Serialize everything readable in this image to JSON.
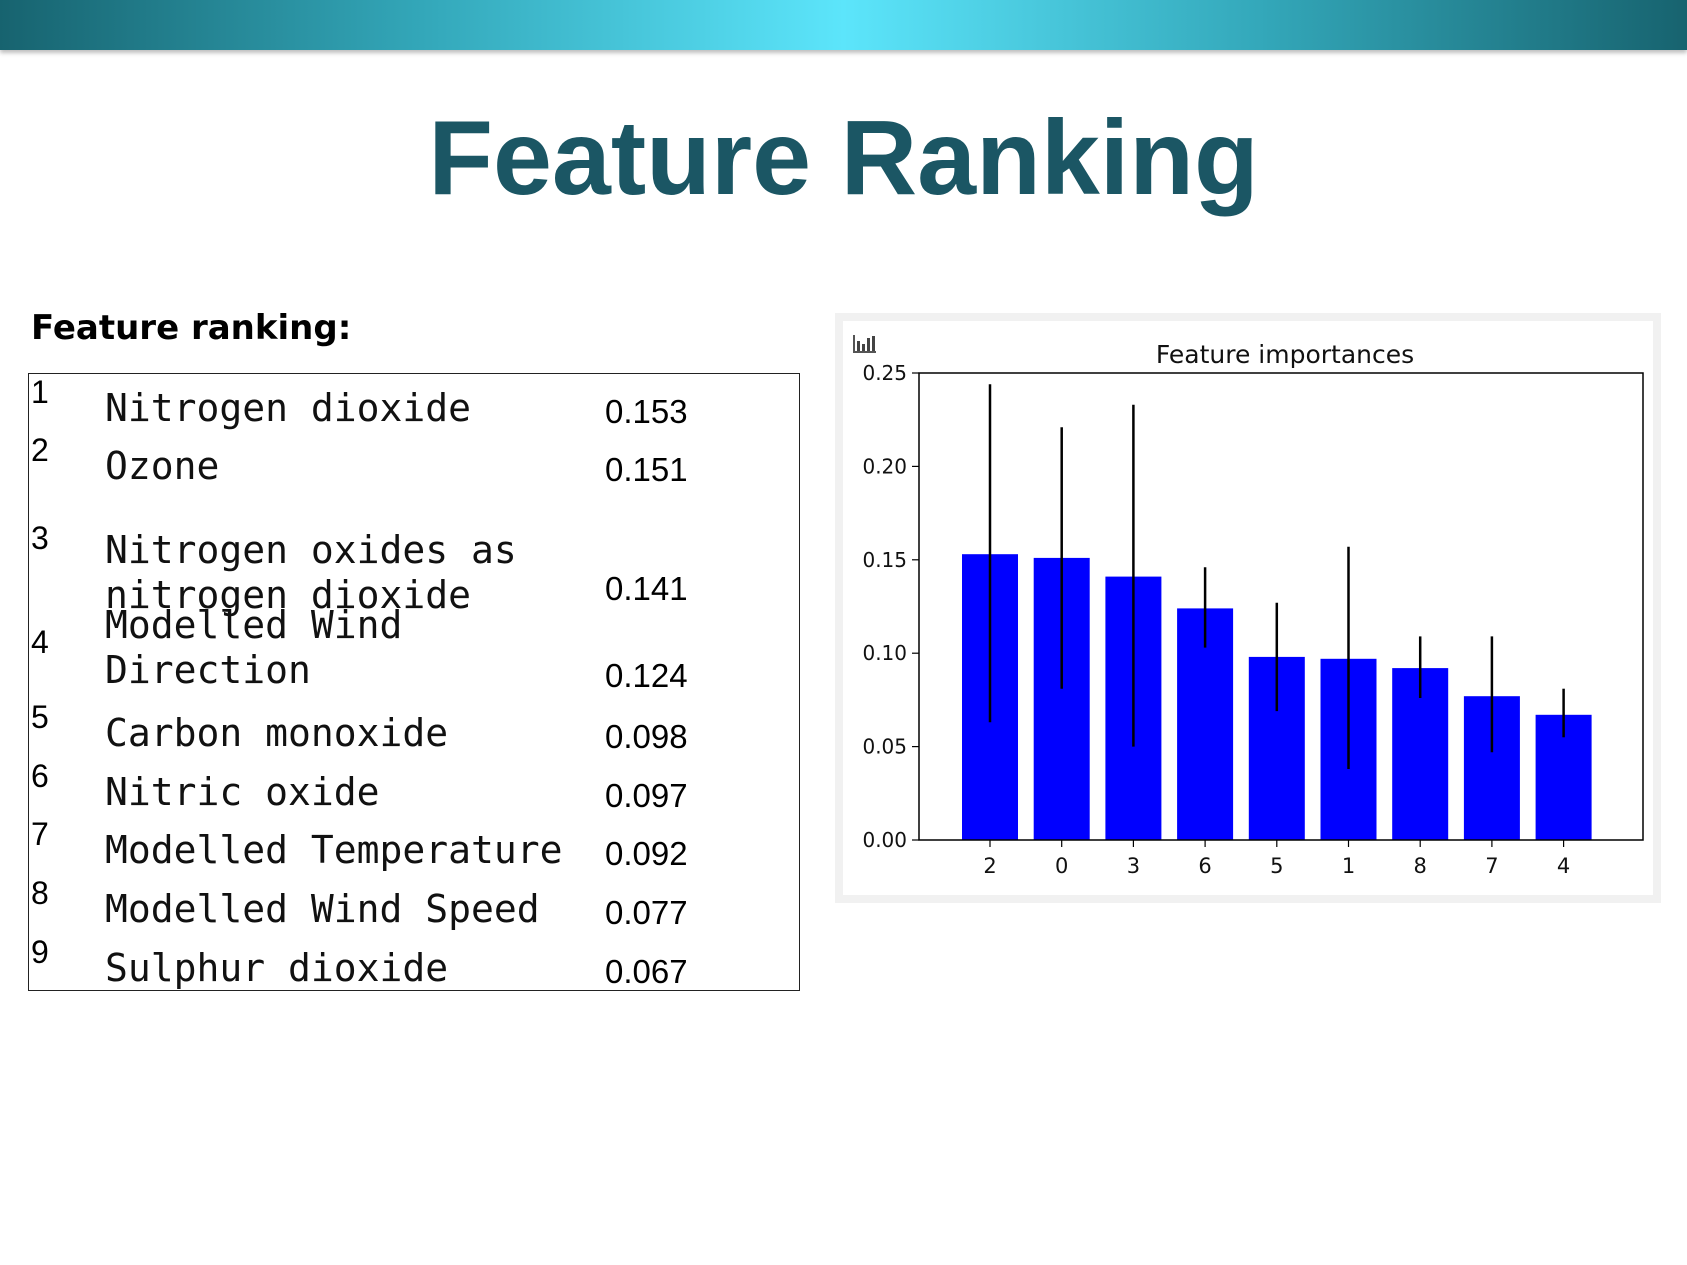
{
  "slide": {
    "title": "Feature Ranking"
  },
  "ranking": {
    "heading": "Feature ranking:",
    "rows": [
      {
        "rank": "1",
        "name": "Nitrogen dioxide",
        "value": "0.153"
      },
      {
        "rank": "2",
        "name": "Ozone",
        "value": "0.151"
      },
      {
        "rank": "3",
        "name": "Nitrogen oxides as\nnitrogen dioxide",
        "value": "0.141"
      },
      {
        "rank": "4",
        "name": "Modelled Wind\nDirection",
        "value": "0.124"
      },
      {
        "rank": "5",
        "name": "Carbon monoxide",
        "value": "0.098"
      },
      {
        "rank": "6",
        "name": "Nitric oxide",
        "value": "0.097"
      },
      {
        "rank": "7",
        "name": "Modelled Temperature",
        "value": "0.092"
      },
      {
        "rank": "8",
        "name": "Modelled Wind Speed",
        "value": "0.077"
      },
      {
        "rank": "9",
        "name": "Sulphur dioxide",
        "value": "0.067"
      }
    ]
  },
  "chart_panel": {
    "icon": "bar-chart-icon"
  },
  "chart_data": {
    "type": "bar",
    "title": "Feature importances",
    "xlabel": "",
    "ylabel": "",
    "categories": [
      "2",
      "0",
      "3",
      "6",
      "5",
      "1",
      "8",
      "7",
      "4"
    ],
    "values": [
      0.153,
      0.151,
      0.141,
      0.124,
      0.098,
      0.097,
      0.092,
      0.077,
      0.067
    ],
    "error_low": [
      0.063,
      0.081,
      0.05,
      0.103,
      0.069,
      0.038,
      0.076,
      0.047,
      0.055
    ],
    "error_high": [
      0.244,
      0.221,
      0.233,
      0.146,
      0.127,
      0.157,
      0.109,
      0.109,
      0.081
    ],
    "ylim": [
      0,
      0.25
    ],
    "yticks": [
      "0.00",
      "0.05",
      "0.10",
      "0.15",
      "0.20",
      "0.25"
    ],
    "grid": false,
    "colors": {
      "bar": "#0000ff",
      "error": "#000000",
      "axes": "#000000"
    }
  }
}
